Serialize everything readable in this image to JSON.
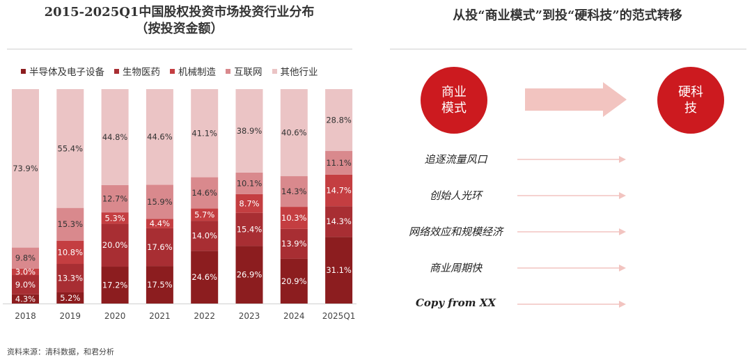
{
  "chart_title": [
    "2015-2025Q1中国股权投资市场投资行业分布",
    "（按投资金额）"
  ],
  "chart_data": {
    "type": "bar",
    "stacked": true,
    "categories": [
      "2018",
      "2019",
      "2020",
      "2021",
      "2022",
      "2023",
      "2024",
      "2025Q1"
    ],
    "series": [
      {
        "name": "半导体及电子设备",
        "color": "#8c1d1f",
        "values": [
          4.3,
          5.2,
          17.2,
          17.5,
          24.6,
          26.9,
          20.9,
          31.1
        ]
      },
      {
        "name": "生物医药",
        "color": "#a82e33",
        "values": [
          9.0,
          13.3,
          20.0,
          17.6,
          14.0,
          15.4,
          13.9,
          14.3
        ]
      },
      {
        "name": "机械制造",
        "color": "#c43e41",
        "values": [
          3.0,
          10.8,
          5.3,
          4.4,
          5.7,
          8.7,
          10.3,
          14.7
        ]
      },
      {
        "name": "互联网",
        "color": "#d9898d",
        "values": [
          9.8,
          15.3,
          12.7,
          15.9,
          14.6,
          10.1,
          14.3,
          11.1
        ]
      },
      {
        "name": "其他行业",
        "color": "#ebc4c5",
        "values": [
          73.9,
          55.4,
          44.8,
          44.6,
          41.1,
          38.9,
          40.6,
          28.8
        ]
      }
    ],
    "value_suffix": "%",
    "ylim": [
      0,
      100
    ]
  },
  "source": "资料来源：清科数据，和君分析",
  "right": {
    "title": "从投“商业模式”到投“硬科技”的范式转移",
    "from_label": "商业\n模式",
    "to_label": "硬科\n技",
    "circle_color": "#cc1a1f",
    "arrow_color": "#f2c4c0",
    "rows": [
      "追逐流量风口",
      "创始人光环",
      "网络效应和规模经济",
      "商业周期快",
      "Copy from XX"
    ]
  }
}
